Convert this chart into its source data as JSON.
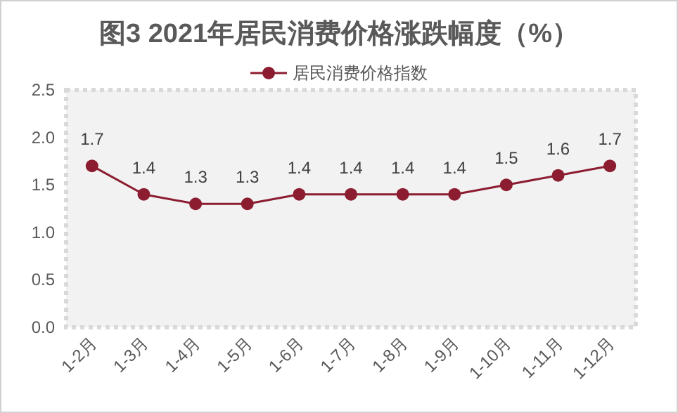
{
  "chart_data": {
    "type": "line",
    "title": "图3 2021年居民消费价格涨跌幅度（%）",
    "categories": [
      "1-2月",
      "1-3月",
      "1-4月",
      "1-5月",
      "1-6月",
      "1-7月",
      "1-8月",
      "1-9月",
      "1-10月",
      "1-11月",
      "1-12月"
    ],
    "series": [
      {
        "name": "居民消费价格指数",
        "color": "#8c1d31",
        "values": [
          1.7,
          1.4,
          1.3,
          1.3,
          1.4,
          1.4,
          1.4,
          1.4,
          1.5,
          1.6,
          1.7
        ]
      }
    ],
    "ylim": [
      0,
      2.5
    ],
    "yticks": [
      {
        "value": 0,
        "label": "0.0"
      },
      0.5,
      {
        "value": 1,
        "label": "1.0"
      },
      1.5,
      {
        "value": 2,
        "label": "2.0"
      },
      2.5
    ],
    "grid": false,
    "legend": "top",
    "marker": "circle",
    "line_style": "solid",
    "data_labels": true
  }
}
